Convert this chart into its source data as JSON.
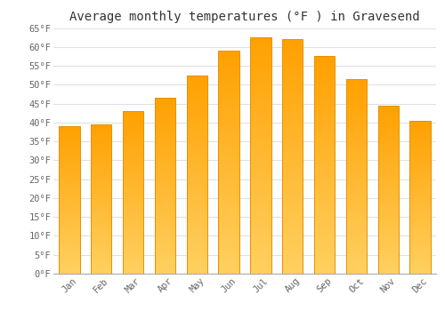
{
  "title": "Average monthly temperatures (°F ) in Gravesend",
  "months": [
    "Jan",
    "Feb",
    "Mar",
    "Apr",
    "May",
    "Jun",
    "Jul",
    "Aug",
    "Sep",
    "Oct",
    "Nov",
    "Dec"
  ],
  "values": [
    39.0,
    39.5,
    43.0,
    46.5,
    52.5,
    59.0,
    62.5,
    62.0,
    57.5,
    51.5,
    44.5,
    40.5
  ],
  "bar_color_top": "#FFD060",
  "bar_color_bottom": "#FFA000",
  "bar_edge_color": "#E89000",
  "ylim": [
    0,
    65
  ],
  "ytick_step": 5,
  "background_color": "#ffffff",
  "grid_color": "#e0e0e0",
  "title_fontsize": 10,
  "tick_fontsize": 7.5,
  "font_family": "monospace"
}
